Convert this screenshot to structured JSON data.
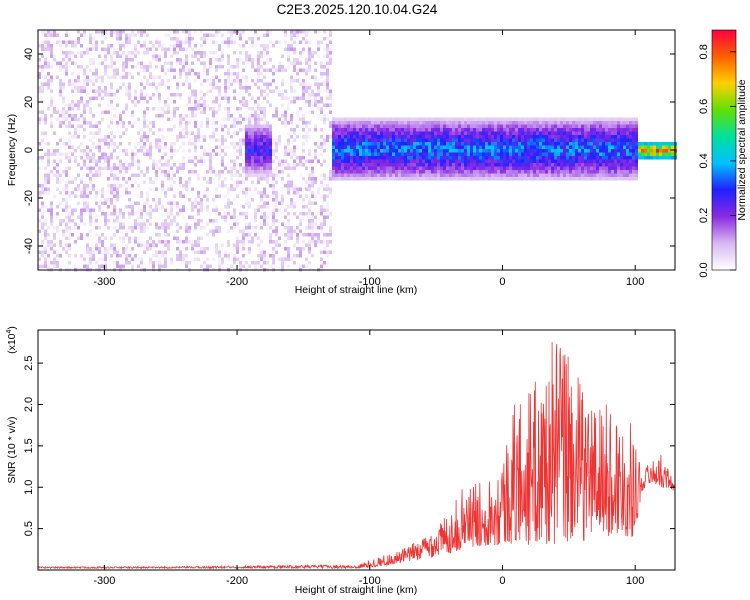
{
  "figure": {
    "title": "C2E3.2025.120.10.04.G24"
  },
  "chart_data": [
    {
      "type": "heatmap",
      "xlabel": "Height of straight line (km)",
      "ylabel": "Frequency (Hz)",
      "xlim": [
        -350,
        130
      ],
      "ylim": [
        -50,
        50
      ],
      "xticks": [
        -300,
        -200,
        -100,
        0,
        100
      ],
      "xtick_labels": [
        "-300",
        "-200",
        "-100",
        "0",
        "100"
      ],
      "yticks": [
        -40,
        -20,
        0,
        20,
        40
      ],
      "ytick_labels": [
        "-40",
        "-20",
        "0",
        "20",
        "40"
      ],
      "grid": false,
      "colorbar": {
        "label": "Normalized spectral amplitude",
        "range": [
          0,
          0.88
        ],
        "ticks": [
          0.0,
          0.2,
          0.4,
          0.6,
          0.8
        ],
        "tick_labels": [
          "0.0",
          "0.2",
          "0.4",
          "0.6",
          "0.8"
        ],
        "colormap": [
          "#ffffff",
          "#d8b8f0",
          "#8a2be2",
          "#2020ff",
          "#00c0ff",
          "#00e0a0",
          "#60e000",
          "#ffd000",
          "#ff6000",
          "#ff0040"
        ]
      },
      "regions": [
        {
          "x": [
            -350,
            -130
          ],
          "freq_band": [
            -50,
            50
          ],
          "amplitude": [
            0.0,
            0.12
          ],
          "description_level": "noise"
        },
        {
          "x": [
            -195,
            -175
          ],
          "freq_band": [
            -10,
            12
          ],
          "amplitude": [
            0.05,
            0.35
          ]
        },
        {
          "x": [
            -130,
            100
          ],
          "freq_band": [
            -12,
            14
          ],
          "amplitude": [
            0.05,
            0.45
          ]
        },
        {
          "x": [
            100,
            130
          ],
          "freq_band": [
            -3,
            4
          ],
          "amplitude": [
            0.3,
            0.88
          ]
        }
      ],
      "colors": {
        "background_speckle": "#8a2be2",
        "core": "#2020ff"
      }
    },
    {
      "type": "line",
      "xlabel": "Height of straight line (km)",
      "ylabel": "SNR (10 * v/v)",
      "yscale_label": "(x10",
      "yscale_exp": "4",
      "yscale_close": ")",
      "xlim": [
        -350,
        130
      ],
      "ylim": [
        0,
        2.9
      ],
      "xticks": [
        -300,
        -200,
        -100,
        0,
        100
      ],
      "xtick_labels": [
        "-300",
        "-200",
        "-100",
        "0",
        "100"
      ],
      "yticks": [
        0.5,
        1.0,
        1.5,
        2.0,
        2.5
      ],
      "ytick_labels": [
        "0.5",
        "1.0",
        "1.5",
        "2.0",
        "2.5"
      ],
      "grid": false,
      "series": [
        {
          "color": "#ee3333",
          "x": [
            -350,
            -300,
            -250,
            -200,
            -150,
            -110,
            -100,
            -90,
            -80,
            -70,
            -60,
            -50,
            -40,
            -30,
            -20,
            -10,
            0,
            10,
            20,
            30,
            40,
            50,
            60,
            70,
            80,
            90,
            100,
            105,
            110,
            120,
            130
          ],
          "envelope_min": [
            0.02,
            0.02,
            0.02,
            0.02,
            0.02,
            0.02,
            0.03,
            0.05,
            0.07,
            0.1,
            0.13,
            0.16,
            0.2,
            0.25,
            0.28,
            0.3,
            0.3,
            0.3,
            0.3,
            0.3,
            0.3,
            0.3,
            0.35,
            0.4,
            0.4,
            0.4,
            0.4,
            0.95,
            1.05,
            1.0,
            0.95
          ],
          "envelope_max": [
            0.04,
            0.04,
            0.04,
            0.05,
            0.06,
            0.06,
            0.12,
            0.18,
            0.22,
            0.3,
            0.4,
            0.55,
            0.7,
            1.0,
            1.05,
            1.15,
            1.4,
            2.1,
            2.2,
            2.4,
            2.9,
            2.75,
            2.2,
            2.1,
            2.0,
            1.9,
            1.7,
            1.15,
            1.3,
            1.4,
            1.05
          ]
        }
      ]
    }
  ]
}
